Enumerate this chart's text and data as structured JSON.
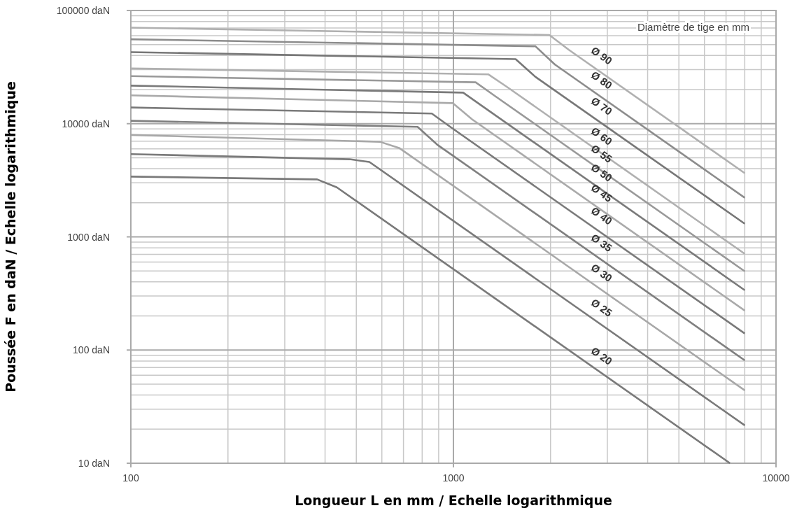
{
  "chart_data": {
    "type": "line",
    "xlabel": "Longueur L en mm / Echelle logarithmique",
    "ylabel": "Poussée F en daN / Echelle logarithmique",
    "annotations": [
      "Diamètre de tige en mm"
    ],
    "log": "xy",
    "grid": true,
    "marker": "none",
    "line_style": "solid",
    "xlim": [
      100,
      10000
    ],
    "xticks": [
      100,
      1000,
      10000
    ],
    "ylim": [
      10,
      100000
    ],
    "yticks": [
      {
        "value": 10,
        "label": "10 daN"
      },
      {
        "value": 100,
        "label": "100 daN"
      },
      {
        "value": 1000,
        "label": "1000 daN"
      },
      {
        "value": 10000,
        "label": "10000 daN"
      },
      {
        "value": 100000,
        "label": "100000 daN"
      }
    ],
    "series": [
      {
        "name": "Ø 90",
        "color": "#b0b0b0",
        "x": [
          100,
          1983,
          2280,
          8000
        ],
        "values": [
          70600,
          60700,
          44900,
          3650
        ]
      },
      {
        "name": "Ø 80",
        "color": "#8c8c8c",
        "x": [
          100,
          1795,
          2064,
          8000
        ],
        "values": [
          55700,
          48300,
          33300,
          2215
        ]
      },
      {
        "name": "Ø 70",
        "color": "#777777",
        "x": [
          100,
          1559,
          1793,
          8000
        ],
        "values": [
          42900,
          37200,
          26000,
          1307
        ]
      },
      {
        "name": "Ø 60",
        "color": "#b0b0b0",
        "x": [
          100,
          1282,
          1474,
          8000
        ],
        "values": [
          30800,
          27300,
          20900,
          708
        ]
      },
      {
        "name": "Ø 55",
        "color": "#999999",
        "x": [
          100,
          1172,
          1348,
          8000
        ],
        "values": [
          26300,
          23200,
          17500,
          496
        ]
      },
      {
        "name": "Ø 50",
        "color": "#7a7a7a",
        "x": [
          100,
          1072,
          1233,
          8000
        ],
        "values": [
          21700,
          18800,
          14200,
          338
        ]
      },
      {
        "name": "Ø 45",
        "color": "#aaaaaa",
        "x": [
          100,
          995,
          1144,
          8000
        ],
        "values": [
          17800,
          15200,
          10900,
          223
        ]
      },
      {
        "name": "Ø 40",
        "color": "#7a7a7a",
        "x": [
          100,
          857,
          986,
          8000
        ],
        "values": [
          13900,
          12300,
          9210,
          140
        ]
      },
      {
        "name": "Ø 35",
        "color": "#808080",
        "x": [
          100,
          774,
          890,
          8000
        ],
        "values": [
          10600,
          9380,
          6540,
          81
        ]
      },
      {
        "name": "Ø 30",
        "color": "#a8a8a8",
        "x": [
          100,
          592,
          681,
          8000
        ],
        "values": [
          7950,
          6920,
          6070,
          44
        ]
      },
      {
        "name": "Ø 25",
        "color": "#7a7a7a",
        "x": [
          100,
          477,
          549,
          8000
        ],
        "values": [
          5380,
          4850,
          4590,
          21.6
        ]
      },
      {
        "name": "Ø 20",
        "color": "#7a7a7a",
        "x": [
          100,
          378,
          435,
          7200
        ],
        "values": [
          3410,
          3220,
          2740,
          10
        ]
      }
    ]
  }
}
